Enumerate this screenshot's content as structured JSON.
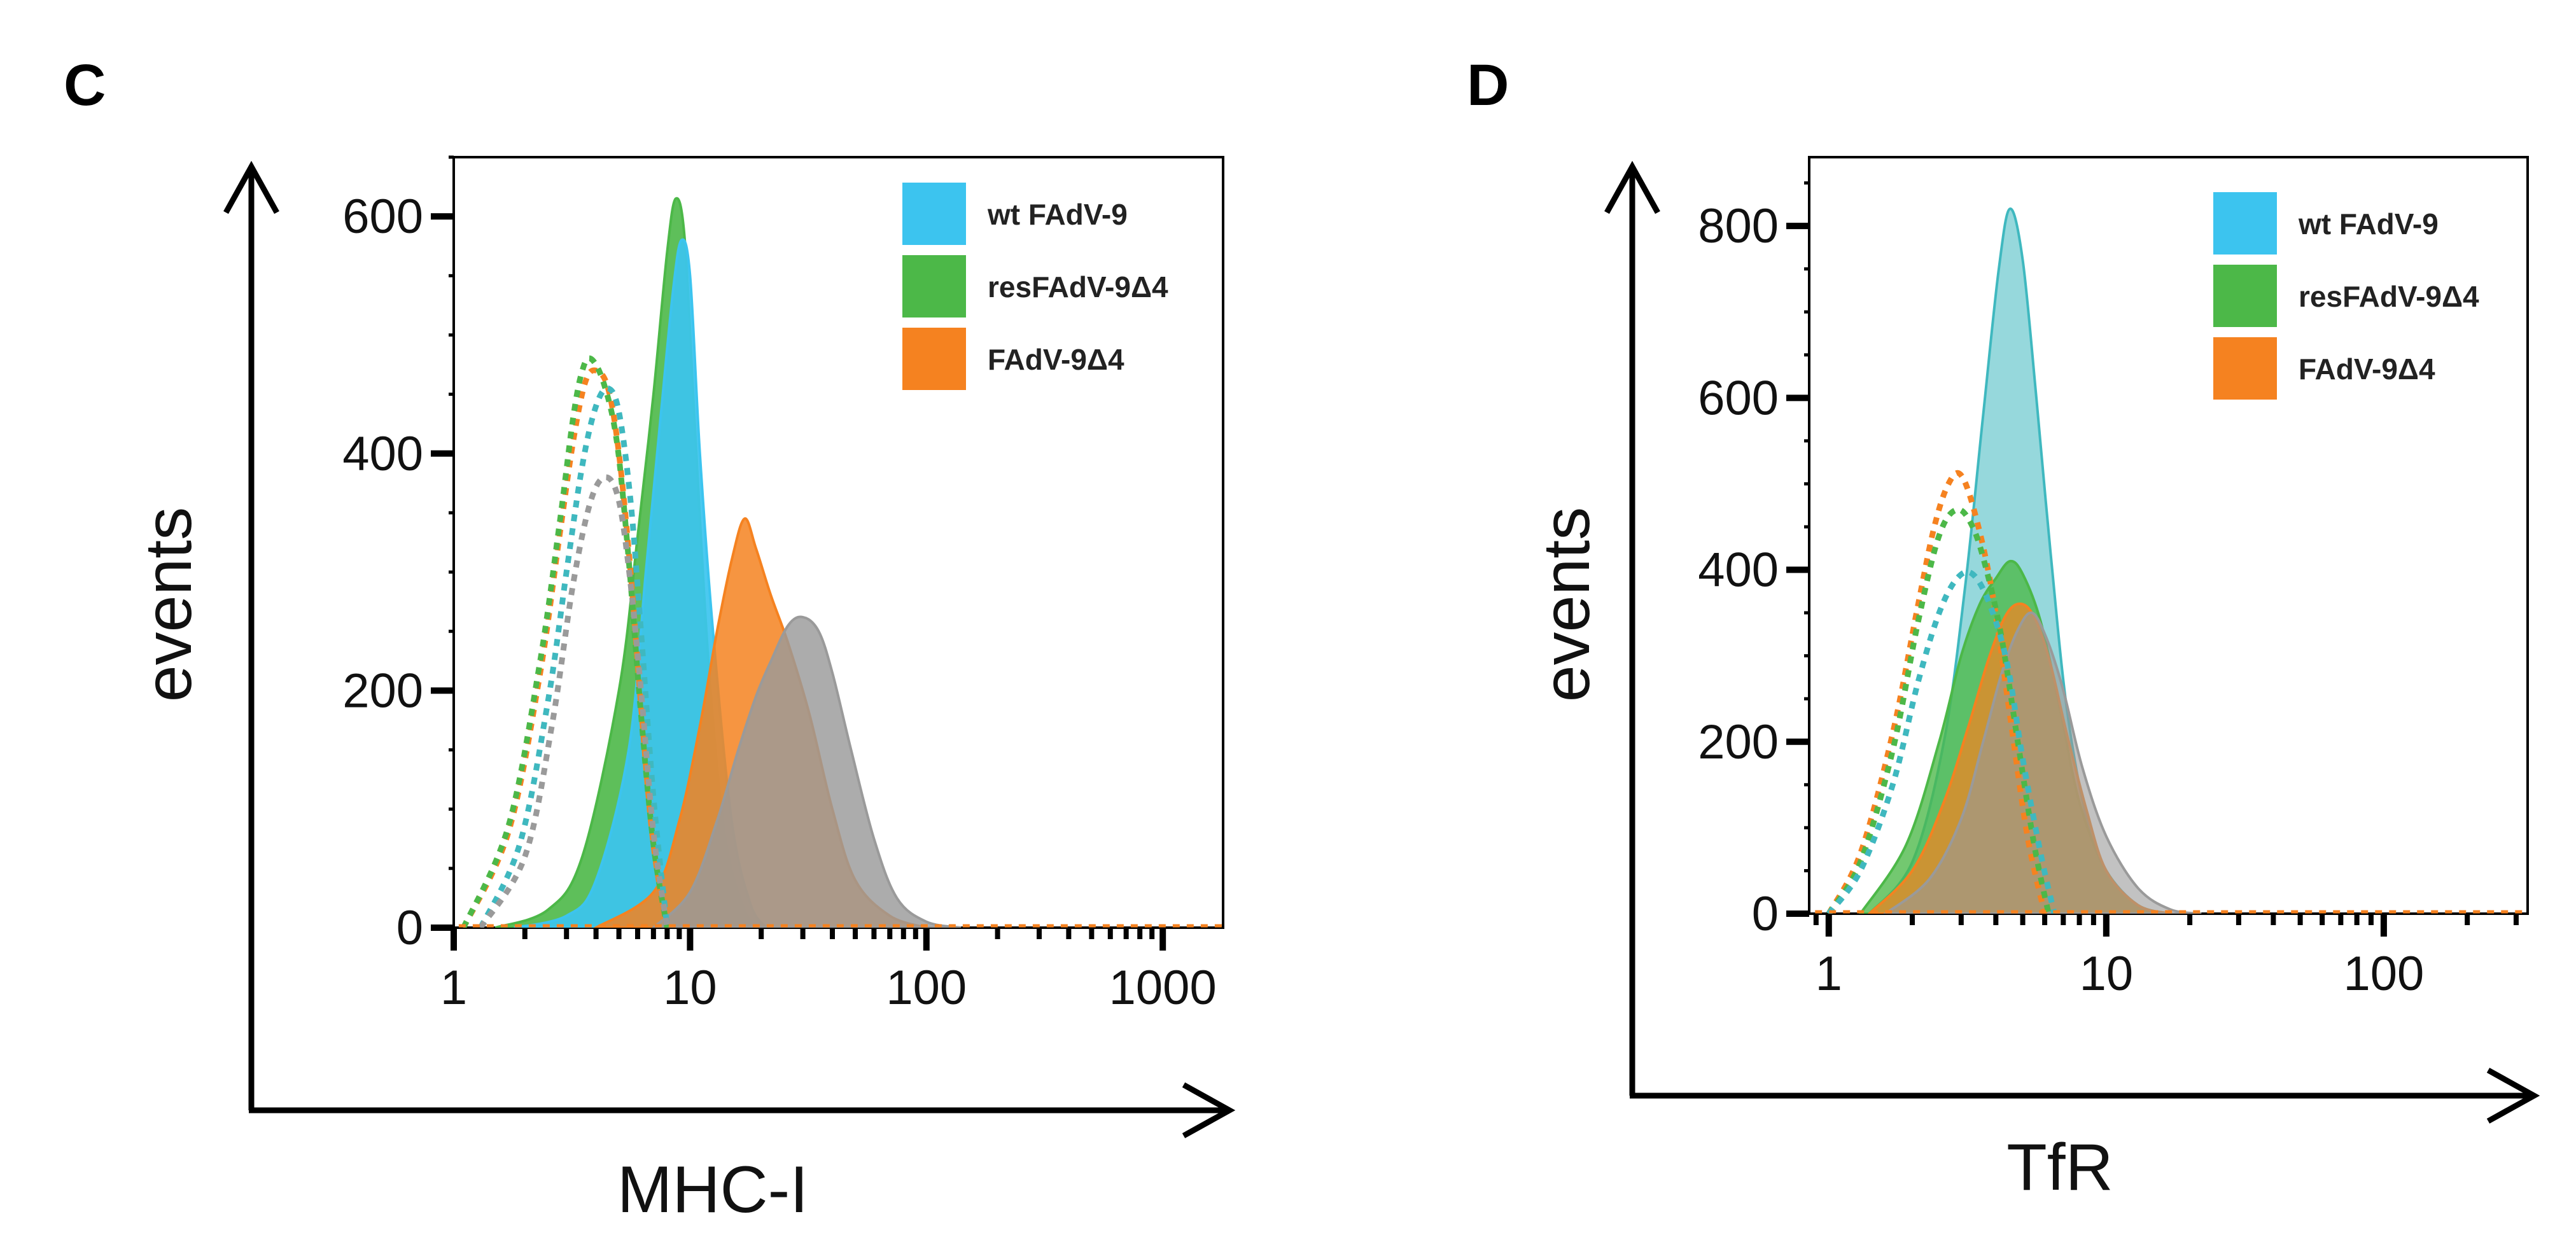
{
  "colors": {
    "wt": "#3cc4ef",
    "res": "#4cb848",
    "d4": "#f58220",
    "iso": "#9a9a9a",
    "teal": "#3fb8bf"
  },
  "chart_data": [
    {
      "panel": "C",
      "type": "area",
      "scale_x": "log",
      "xlabel": "MHC-I",
      "ylabel": "events",
      "xlim": [
        1,
        1800
      ],
      "ylim": [
        0,
        650
      ],
      "xticks": [
        1,
        10,
        100,
        1000
      ],
      "xtick_labels": [
        "1",
        "10",
        "100",
        "1000"
      ],
      "yticks": [
        0,
        200,
        400,
        600
      ],
      "ytick_labels": [
        "0",
        "200",
        "400",
        "600"
      ],
      "legend": [
        {
          "label": "wt FAdV-9",
          "color": "#3cc4ef"
        },
        {
          "label": "resFAdV-9Δ4",
          "color": "#4cb848"
        },
        {
          "label": "FAdV-9Δ4",
          "color": "#f58220"
        }
      ],
      "legend_position": "top-right",
      "series": [
        {
          "name": "resFAdV-9Δ4",
          "style": "filled",
          "color": "#4cb848",
          "opacity": 0.9,
          "x": [
            1.5,
            2.5,
            3.5,
            5,
            6,
            7,
            8,
            8.7,
            9.5,
            10.5,
            12,
            14,
            17,
            20
          ],
          "y": [
            0,
            15,
            60,
            200,
            330,
            450,
            570,
            615,
            580,
            420,
            220,
            80,
            15,
            0
          ]
        },
        {
          "name": "wt FAdV-9",
          "style": "filled",
          "color": "#3cc4ef",
          "opacity": 0.92,
          "x": [
            1.8,
            3,
            4,
            5.5,
            6.5,
            7.5,
            8.5,
            9.2,
            10,
            11,
            12.5,
            15,
            18,
            21
          ],
          "y": [
            0,
            10,
            40,
            150,
            300,
            430,
            540,
            580,
            550,
            400,
            250,
            90,
            20,
            0
          ]
        },
        {
          "name": "FAdV-9Δ4",
          "style": "filled",
          "color": "#f58220",
          "opacity": 0.85,
          "x": [
            4,
            7,
            9,
            11,
            13,
            15,
            17,
            19,
            22,
            26,
            32,
            40,
            50,
            70,
            100
          ],
          "y": [
            0,
            30,
            90,
            170,
            250,
            310,
            345,
            320,
            280,
            240,
            180,
            100,
            40,
            10,
            0
          ]
        },
        {
          "name": "isotype-grey",
          "style": "filled",
          "color": "#9a9a9a",
          "opacity": 0.82,
          "x": [
            7,
            10,
            13,
            16,
            19,
            22,
            26,
            30,
            35,
            40,
            48,
            60,
            75,
            100,
            140
          ],
          "y": [
            0,
            30,
            90,
            150,
            195,
            225,
            255,
            262,
            250,
            215,
            150,
            75,
            25,
            5,
            0
          ]
        },
        {
          "name": "control-orange",
          "style": "dashed",
          "color": "#f58220",
          "x": [
            1.1,
            1.7,
            2.3,
            2.8,
            3.2,
            3.6,
            4,
            4.5,
            5,
            5.6,
            6.3,
            7,
            8
          ],
          "y": [
            0,
            80,
            210,
            330,
            410,
            460,
            470,
            455,
            400,
            300,
            170,
            70,
            0
          ]
        },
        {
          "name": "control-green",
          "style": "dashed",
          "color": "#4cb848",
          "x": [
            1.1,
            1.7,
            2.3,
            2.8,
            3.2,
            3.5,
            3.8,
            4.3,
            4.9,
            5.5,
            6.2,
            7,
            8
          ],
          "y": [
            0,
            85,
            220,
            340,
            430,
            470,
            480,
            460,
            410,
            310,
            180,
            70,
            0
          ]
        },
        {
          "name": "control-teal",
          "style": "dashed",
          "color": "#3fb8bf",
          "x": [
            1.3,
            1.9,
            2.5,
            3,
            3.5,
            4,
            4.5,
            5,
            5.6,
            6.2,
            7,
            8
          ],
          "y": [
            0,
            70,
            190,
            300,
            390,
            440,
            455,
            435,
            360,
            250,
            110,
            0
          ]
        },
        {
          "name": "control-grey",
          "style": "dashed",
          "color": "#9a9a9a",
          "x": [
            1.3,
            2,
            2.6,
            3.2,
            3.8,
            4.4,
            5,
            5.6,
            6.2,
            7,
            8
          ],
          "y": [
            0,
            60,
            170,
            290,
            360,
            380,
            360,
            290,
            200,
            80,
            0
          ]
        }
      ]
    },
    {
      "panel": "D",
      "type": "area",
      "scale_x": "log",
      "xlabel": "TfR",
      "ylabel": "events",
      "xlim": [
        0.85,
        330
      ],
      "ylim": [
        0,
        880
      ],
      "xticks": [
        1,
        10,
        100
      ],
      "xtick_labels": [
        "1",
        "10",
        "100"
      ],
      "yticks": [
        0,
        200,
        400,
        600,
        800
      ],
      "ytick_labels": [
        "0",
        "200",
        "400",
        "600",
        "800"
      ],
      "legend": [
        {
          "label": "wt FAdV-9",
          "color": "#3cc4ef"
        },
        {
          "label": "resFAdV-9Δ4",
          "color": "#4cb848"
        },
        {
          "label": "FAdV-9Δ4",
          "color": "#f58220"
        }
      ],
      "legend_position": "top-right",
      "series": [
        {
          "name": "wt FAdV-9",
          "style": "filled",
          "color": "#3fb8bf",
          "opacity": 0.55,
          "x": [
            1.4,
            2,
            2.6,
            3.1,
            3.6,
            4.1,
            4.5,
            5,
            5.6,
            6.3,
            7.2,
            8.5,
            10,
            13,
            17
          ],
          "y": [
            0,
            60,
            200,
            380,
            580,
            750,
            820,
            760,
            600,
            420,
            240,
            110,
            50,
            10,
            0
          ]
        },
        {
          "name": "resFAdV-9Δ4",
          "style": "filled",
          "color": "#4cb848",
          "opacity": 0.78,
          "x": [
            1.3,
            1.9,
            2.5,
            3,
            3.5,
            4,
            4.5,
            5,
            5.8,
            6.8,
            8,
            10,
            13,
            17
          ],
          "y": [
            0,
            80,
            200,
            300,
            360,
            390,
            410,
            395,
            340,
            240,
            130,
            50,
            10,
            0
          ]
        },
        {
          "name": "FAdV-9Δ4",
          "style": "filled",
          "color": "#f58220",
          "opacity": 0.72,
          "x": [
            1.4,
            2,
            2.6,
            3.2,
            3.8,
            4.4,
            5,
            5.6,
            6.3,
            7.2,
            8.5,
            10,
            13,
            17
          ],
          "y": [
            0,
            50,
            130,
            220,
            300,
            350,
            360,
            340,
            290,
            210,
            120,
            50,
            10,
            0
          ]
        },
        {
          "name": "isotype-grey",
          "style": "filled",
          "color": "#9a9a9a",
          "opacity": 0.6,
          "x": [
            1.6,
            2.3,
            3,
            3.6,
            4.2,
            4.8,
            5.4,
            6.1,
            7,
            8.2,
            10,
            13,
            17,
            22
          ],
          "y": [
            0,
            40,
            110,
            200,
            280,
            330,
            350,
            320,
            260,
            170,
            90,
            30,
            5,
            0
          ]
        },
        {
          "name": "control-orange",
          "style": "dashed",
          "color": "#f58220",
          "x": [
            1,
            1.3,
            1.7,
            2.1,
            2.4,
            2.7,
            3,
            3.4,
            3.9,
            4.5,
            5.2,
            6
          ],
          "y": [
            0,
            70,
            210,
            360,
            450,
            500,
            510,
            460,
            370,
            230,
            90,
            0
          ]
        },
        {
          "name": "control-green",
          "style": "dashed",
          "color": "#4cb848",
          "x": [
            1,
            1.3,
            1.7,
            2.1,
            2.5,
            2.9,
            3.3,
            3.7,
            4.2,
            4.8,
            5.5,
            6.2
          ],
          "y": [
            0,
            60,
            190,
            340,
            440,
            470,
            450,
            400,
            320,
            200,
            80,
            0
          ]
        },
        {
          "name": "control-teal",
          "style": "dashed",
          "color": "#3fb8bf",
          "x": [
            1,
            1.3,
            1.7,
            2.1,
            2.5,
            2.9,
            3.3,
            3.8,
            4.4,
            5,
            5.8,
            6.5
          ],
          "y": [
            0,
            50,
            150,
            270,
            350,
            390,
            395,
            360,
            290,
            180,
            70,
            0
          ]
        }
      ]
    }
  ]
}
